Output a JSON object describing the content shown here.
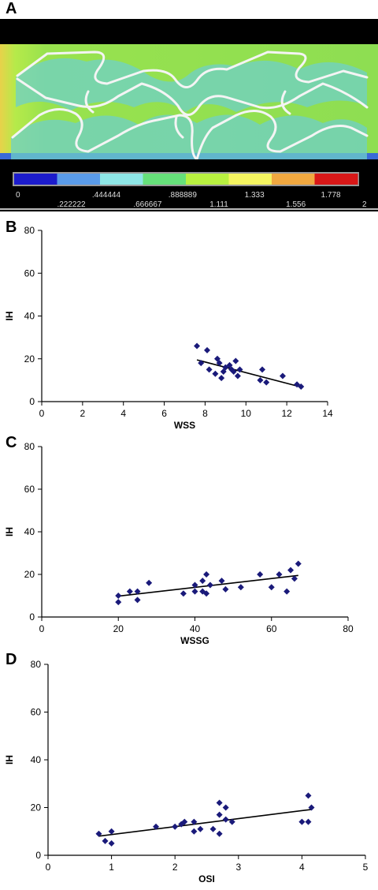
{
  "panels": {
    "a": "A",
    "b": "B",
    "c": "C",
    "d": "D"
  },
  "colorbar": {
    "top_labels": [
      "0",
      ".444444",
      ".888889",
      "1.333",
      "1.778"
    ],
    "bottom_labels": [
      ".222222",
      ".666667",
      "1.111",
      "1.556",
      "2"
    ],
    "colors": [
      "#1c1ccc",
      "#5a9be8",
      "#8ee6e6",
      "#66e07a",
      "#b8f040",
      "#f4f460",
      "#f0a840",
      "#d81818"
    ]
  },
  "chart_data": [
    {
      "type": "scatter",
      "title": "",
      "xlabel": "WSS",
      "ylabel": "IH",
      "xlim": [
        0,
        14
      ],
      "ylim": [
        0,
        80
      ],
      "xticks": [
        0,
        2,
        4,
        6,
        8,
        10,
        12,
        14
      ],
      "yticks": [
        0,
        20,
        40,
        60,
        80
      ],
      "marker_color": "#1a1a7a",
      "points": [
        [
          7.6,
          26
        ],
        [
          7.8,
          18
        ],
        [
          8.1,
          24
        ],
        [
          8.2,
          15
        ],
        [
          8.5,
          13
        ],
        [
          8.6,
          20
        ],
        [
          8.7,
          18
        ],
        [
          8.8,
          11
        ],
        [
          8.9,
          14
        ],
        [
          9.0,
          16
        ],
        [
          9.2,
          17
        ],
        [
          9.3,
          15
        ],
        [
          9.4,
          14
        ],
        [
          9.5,
          19
        ],
        [
          9.6,
          12
        ],
        [
          9.7,
          15
        ],
        [
          10.7,
          10
        ],
        [
          10.8,
          15
        ],
        [
          11.0,
          9
        ],
        [
          11.8,
          12
        ],
        [
          12.5,
          8
        ],
        [
          12.7,
          7
        ]
      ],
      "trendline": [
        [
          7.6,
          19.5
        ],
        [
          12.7,
          6.8
        ]
      ]
    },
    {
      "type": "scatter",
      "title": "",
      "xlabel": "WSSG",
      "ylabel": "IH",
      "xlim": [
        0,
        80
      ],
      "ylim": [
        0,
        80
      ],
      "xticks": [
        0,
        20,
        40,
        60,
        80
      ],
      "yticks": [
        0,
        20,
        40,
        60,
        80
      ],
      "marker_color": "#1a1a7a",
      "points": [
        [
          20,
          10
        ],
        [
          20,
          7
        ],
        [
          23,
          12
        ],
        [
          25,
          12
        ],
        [
          25,
          8
        ],
        [
          28,
          16
        ],
        [
          37,
          11
        ],
        [
          40,
          15
        ],
        [
          40,
          12
        ],
        [
          42,
          17
        ],
        [
          42,
          12
        ],
        [
          43,
          11
        ],
        [
          43,
          20
        ],
        [
          44,
          15
        ],
        [
          47,
          17
        ],
        [
          48,
          13
        ],
        [
          52,
          14
        ],
        [
          57,
          20
        ],
        [
          60,
          14
        ],
        [
          62,
          20
        ],
        [
          64,
          12
        ],
        [
          65,
          22
        ],
        [
          66,
          18
        ],
        [
          67,
          25
        ]
      ],
      "trendline": [
        [
          20,
          9.8
        ],
        [
          67,
          19.5
        ]
      ]
    },
    {
      "type": "scatter",
      "title": "",
      "xlabel": "OSI",
      "ylabel": "IH",
      "xlim": [
        0,
        5
      ],
      "ylim": [
        0,
        80
      ],
      "xticks": [
        0,
        1,
        2,
        3,
        4,
        5
      ],
      "yticks": [
        0,
        20,
        40,
        60,
        80
      ],
      "marker_color": "#1a1a7a",
      "points": [
        [
          0.8,
          9
        ],
        [
          0.9,
          6
        ],
        [
          1.0,
          10
        ],
        [
          1.0,
          5
        ],
        [
          1.7,
          12
        ],
        [
          2.0,
          12
        ],
        [
          2.1,
          13
        ],
        [
          2.15,
          14
        ],
        [
          2.3,
          14
        ],
        [
          2.3,
          10
        ],
        [
          2.4,
          11
        ],
        [
          2.6,
          11
        ],
        [
          2.7,
          22
        ],
        [
          2.7,
          17
        ],
        [
          2.7,
          9
        ],
        [
          2.8,
          15
        ],
        [
          2.8,
          20
        ],
        [
          2.9,
          14
        ],
        [
          4.0,
          14
        ],
        [
          4.1,
          25
        ],
        [
          4.1,
          14
        ],
        [
          4.15,
          20
        ]
      ],
      "trendline": [
        [
          0.8,
          8.0
        ],
        [
          4.15,
          19.2
        ]
      ]
    }
  ]
}
